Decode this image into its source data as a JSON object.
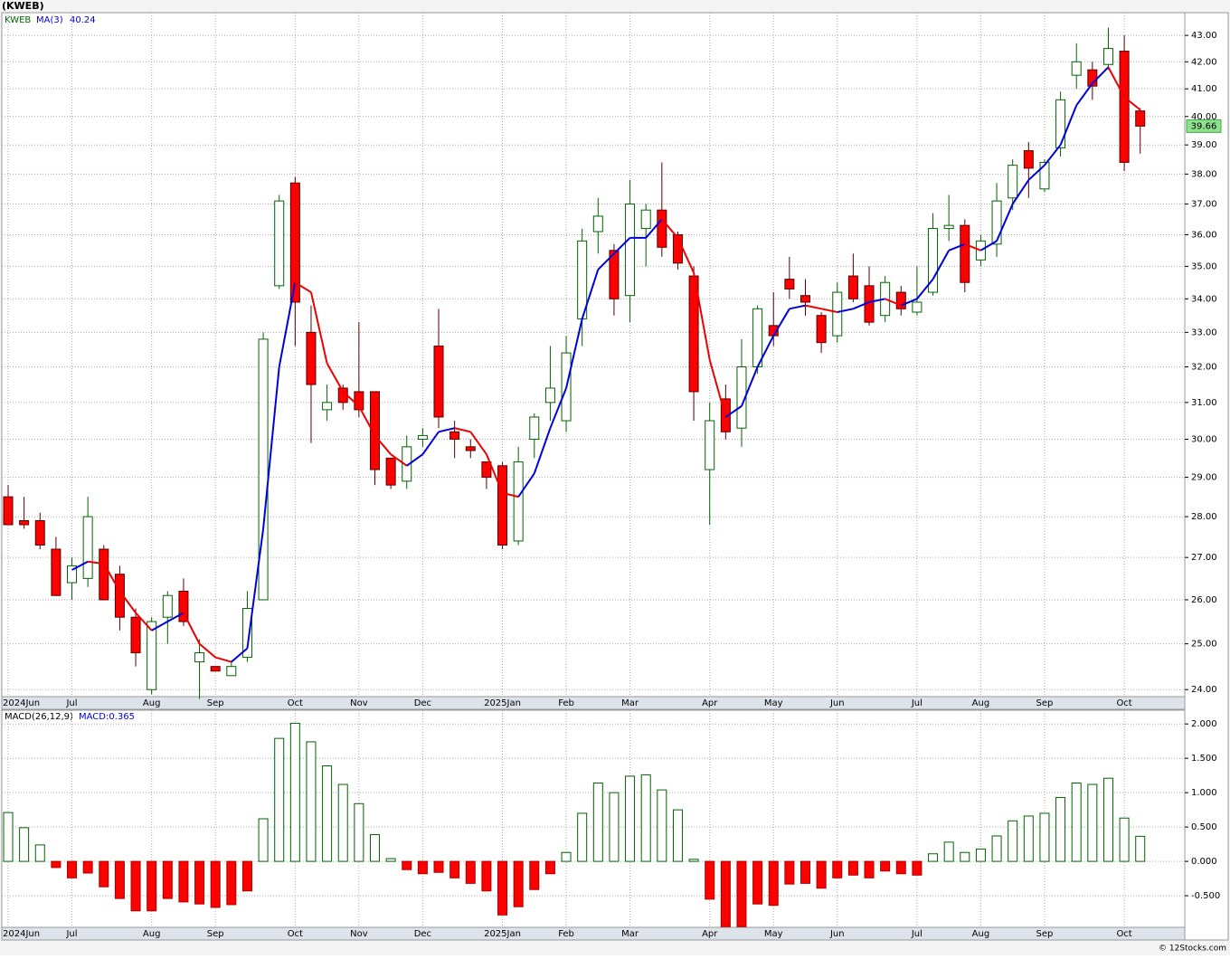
{
  "chart_data": [
    {
      "type": "candlestick",
      "title": "(KWEB)",
      "name": "KWEB",
      "log_scale": true,
      "grid": true,
      "up_color": "#006400",
      "down_color": "#ff0000",
      "categories": [
        "2024Jun",
        null,
        null,
        null,
        "Jul",
        null,
        null,
        null,
        null,
        "Aug",
        null,
        null,
        null,
        "Sep",
        null,
        null,
        null,
        null,
        "Oct",
        null,
        null,
        null,
        "Nov",
        null,
        null,
        null,
        "Dec",
        null,
        null,
        null,
        null,
        "2025Jan",
        null,
        null,
        null,
        "Feb",
        null,
        null,
        null,
        "Mar",
        null,
        null,
        null,
        null,
        "Apr",
        null,
        null,
        null,
        "May",
        null,
        null,
        null,
        "Jun",
        null,
        null,
        null,
        null,
        "Jul",
        null,
        null,
        null,
        "Aug",
        null,
        null,
        null,
        "Sep",
        null,
        null,
        null,
        null,
        "Oct",
        null
      ],
      "open": [
        28.5,
        27.9,
        27.9,
        27.2,
        26.4,
        26.5,
        27.2,
        26.6,
        25.6,
        24.0,
        25.6,
        26.2,
        24.6,
        24.5,
        24.3,
        24.7,
        26.0,
        34.4,
        37.7,
        33.0,
        30.8,
        31.4,
        31.3,
        31.3,
        29.5,
        28.9,
        30.0,
        32.6,
        30.2,
        29.8,
        29.4,
        29.3,
        27.4,
        30.0,
        31.0,
        30.5,
        33.4,
        36.1,
        35.5,
        34.1,
        36.2,
        36.8,
        36.0,
        34.7,
        29.2,
        31.1,
        30.3,
        32.0,
        33.2,
        34.6,
        34.1,
        33.5,
        32.9,
        34.7,
        34.4,
        33.5,
        34.2,
        33.6,
        34.2,
        36.2,
        36.3,
        35.2,
        35.7,
        37.2,
        38.8,
        37.5,
        38.9,
        41.5,
        41.7,
        41.9,
        42.4,
        40.2
      ],
      "high": [
        28.8,
        28.5,
        28.1,
        27.5,
        27.0,
        28.5,
        27.3,
        26.8,
        25.8,
        25.6,
        26.2,
        26.5,
        25.1,
        24.5,
        24.6,
        26.2,
        33.0,
        37.3,
        37.9,
        33.8,
        31.5,
        31.5,
        33.3,
        31.3,
        29.5,
        30.1,
        30.3,
        33.7,
        30.5,
        30.0,
        29.4,
        29.4,
        29.8,
        30.7,
        32.6,
        32.9,
        36.2,
        37.2,
        35.7,
        37.8,
        37.0,
        38.4,
        36.1,
        35.0,
        31.0,
        31.5,
        32.8,
        33.8,
        34.2,
        35.3,
        34.6,
        33.6,
        34.5,
        35.4,
        35.0,
        34.7,
        34.4,
        35.0,
        36.7,
        37.3,
        36.5,
        36.0,
        37.7,
        38.5,
        39.1,
        38.5,
        40.9,
        42.7,
        42.0,
        43.3,
        43.0,
        40.3
      ],
      "low": [
        27.8,
        27.7,
        27.2,
        26.1,
        26.0,
        26.3,
        26.0,
        25.3,
        24.5,
        23.9,
        25.0,
        25.4,
        23.8,
        24.4,
        24.3,
        24.6,
        26.0,
        34.3,
        32.6,
        29.9,
        30.5,
        30.8,
        30.6,
        28.8,
        28.7,
        28.7,
        29.8,
        30.3,
        29.5,
        29.5,
        28.7,
        27.2,
        27.3,
        29.5,
        30.5,
        30.2,
        32.6,
        35.4,
        33.5,
        33.3,
        35.0,
        35.3,
        34.9,
        30.5,
        27.8,
        30.0,
        29.8,
        31.8,
        32.6,
        34.0,
        33.5,
        32.4,
        32.7,
        33.9,
        33.2,
        33.3,
        33.5,
        33.5,
        34.1,
        35.8,
        34.2,
        35.0,
        35.3,
        36.8,
        37.2,
        37.4,
        38.6,
        41.0,
        40.6,
        41.7,
        38.1,
        38.7
      ],
      "close": [
        27.8,
        27.8,
        27.3,
        26.1,
        26.8,
        28.0,
        26.0,
        25.6,
        24.8,
        25.5,
        26.1,
        25.5,
        24.8,
        24.4,
        24.5,
        25.8,
        32.8,
        37.1,
        33.9,
        31.5,
        31.0,
        31.0,
        30.8,
        29.2,
        28.8,
        29.8,
        30.1,
        30.6,
        30.0,
        29.7,
        29.0,
        27.3,
        29.4,
        30.6,
        31.4,
        32.4,
        35.8,
        36.6,
        34.0,
        37.0,
        36.8,
        35.6,
        35.1,
        31.3,
        30.5,
        30.2,
        32.0,
        33.7,
        32.9,
        34.3,
        33.9,
        32.7,
        34.2,
        34.0,
        33.3,
        34.5,
        33.7,
        33.9,
        36.2,
        36.3,
        34.5,
        35.8,
        37.1,
        38.3,
        38.2,
        38.4,
        40.6,
        42.0,
        41.1,
        42.5,
        38.4,
        39.66
      ],
      "ma": {
        "name": "MA(3)",
        "rise_color": "#0000dd",
        "fall_color": "#ee0000",
        "values": [
          null,
          null,
          null,
          null,
          26.7,
          26.9,
          26.85,
          26.2,
          25.7,
          25.3,
          25.5,
          25.7,
          25.0,
          24.7,
          24.6,
          24.9,
          27.7,
          32.0,
          34.5,
          34.2,
          32.1,
          31.3,
          30.9,
          30.1,
          29.6,
          29.3,
          29.6,
          30.2,
          30.3,
          30.2,
          29.6,
          28.6,
          28.5,
          29.1,
          30.3,
          31.4,
          33.4,
          34.9,
          35.4,
          35.9,
          35.9,
          36.5,
          35.9,
          34.8,
          32.2,
          30.6,
          30.9,
          32.0,
          32.9,
          33.7,
          33.8,
          33.7,
          33.6,
          33.7,
          33.9,
          34.0,
          33.8,
          34.0,
          34.6,
          35.5,
          35.7,
          35.5,
          35.8,
          37.0,
          37.8,
          38.3,
          39.0,
          40.4,
          41.2,
          41.8,
          40.7,
          40.24
        ]
      },
      "ylim": [
        23.85,
        43.88
      ],
      "yticks": [
        {
          "value": 24,
          "label": "24.00"
        },
        {
          "value": 25,
          "label": "25.00"
        },
        {
          "value": 26,
          "label": "26.00"
        },
        {
          "value": 27,
          "label": "27.00"
        },
        {
          "value": 28,
          "label": "28.00"
        },
        {
          "value": 29,
          "label": "29.00"
        },
        {
          "value": 30,
          "label": "30.00"
        },
        {
          "value": 31,
          "label": "31.00"
        },
        {
          "value": 32,
          "label": "32.00"
        },
        {
          "value": 33,
          "label": "33.00"
        },
        {
          "value": 34,
          "label": "34.00"
        },
        {
          "value": 35,
          "label": "35.00"
        },
        {
          "value": 36,
          "label": "36.00"
        },
        {
          "value": 37,
          "label": "37.00"
        },
        {
          "value": 38,
          "label": "38.00"
        },
        {
          "value": 39,
          "label": "39.00"
        },
        {
          "value": 40,
          "label": "40.00"
        },
        {
          "value": 41,
          "label": "41.00"
        },
        {
          "value": 42,
          "label": "42.00"
        },
        {
          "value": 43,
          "label": "43.00"
        }
      ]
    },
    {
      "type": "bar",
      "title": "MACD(26,12,9)",
      "value_prefix": "MACD:",
      "grid": true,
      "up_color": "#006400",
      "down_color": "#ff0000",
      "categories": [
        "2024Jun",
        null,
        null,
        null,
        "Jul",
        null,
        null,
        null,
        null,
        "Aug",
        null,
        null,
        null,
        "Sep",
        null,
        null,
        null,
        null,
        "Oct",
        null,
        null,
        null,
        "Nov",
        null,
        null,
        null,
        "Dec",
        null,
        null,
        null,
        null,
        "2025Jan",
        null,
        null,
        null,
        "Feb",
        null,
        null,
        null,
        "Mar",
        null,
        null,
        null,
        null,
        "Apr",
        null,
        null,
        null,
        "May",
        null,
        null,
        null,
        "Jun",
        null,
        null,
        null,
        null,
        "Jul",
        null,
        null,
        null,
        "Aug",
        null,
        null,
        null,
        "Sep",
        null,
        null,
        null,
        null,
        "Oct",
        null
      ],
      "values": [
        0.71,
        0.49,
        0.24,
        -0.09,
        -0.24,
        -0.17,
        -0.37,
        -0.54,
        -0.72,
        -0.72,
        -0.54,
        -0.59,
        -0.62,
        -0.67,
        -0.63,
        -0.43,
        0.62,
        1.79,
        2.01,
        1.74,
        1.39,
        1.12,
        0.84,
        0.39,
        0.04,
        -0.12,
        -0.18,
        -0.16,
        -0.24,
        -0.32,
        -0.43,
        -0.78,
        -0.66,
        -0.41,
        -0.18,
        0.13,
        0.7,
        1.14,
        1.0,
        1.24,
        1.26,
        1.04,
        0.75,
        0.03,
        -0.55,
        -0.95,
        -0.95,
        -0.62,
        -0.64,
        -0.33,
        -0.32,
        -0.39,
        -0.24,
        -0.2,
        -0.24,
        -0.14,
        -0.18,
        -0.2,
        0.11,
        0.28,
        0.13,
        0.18,
        0.37,
        0.59,
        0.66,
        0.7,
        0.93,
        1.14,
        1.12,
        1.21,
        0.63,
        0.365
      ],
      "ylim": [
        -0.96,
        2.2
      ],
      "yticks": [
        {
          "value": -0.5,
          "label": "-0.500"
        },
        {
          "value": 0,
          "label": "0.000"
        },
        {
          "value": 0.5,
          "label": "0.500"
        },
        {
          "value": 1,
          "label": "1.000"
        },
        {
          "value": 1.5,
          "label": "1.500"
        },
        {
          "value": 2,
          "label": "2.000"
        }
      ]
    }
  ],
  "footer": "© 12Stocks.com"
}
